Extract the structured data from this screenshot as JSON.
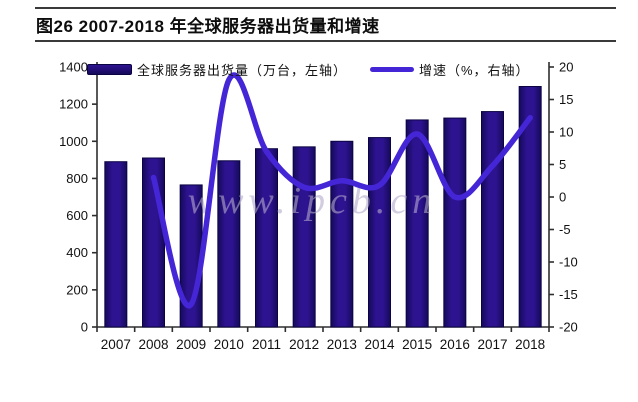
{
  "header": {
    "title": "图26  2007-2018 年全球服务器出货量和增速"
  },
  "legend": [
    {
      "label": "全球服务器出货量（万台，左轴）",
      "type": "bar"
    },
    {
      "label": "增速（%，右轴）",
      "type": "line"
    }
  ],
  "watermark": {
    "text": "www.ipcb.cn"
  },
  "chart_data": {
    "type": "bar+line combo",
    "title": "2007-2018 年全球服务器出货量和增速",
    "categories": [
      "2007",
      "2008",
      "2009",
      "2010",
      "2011",
      "2012",
      "2013",
      "2014",
      "2015",
      "2016",
      "2017",
      "2018"
    ],
    "series": [
      {
        "name": "全球服务器出货量（万台，左轴）",
        "type": "bar",
        "axis": "left",
        "values": [
          890,
          910,
          765,
          895,
          960,
          970,
          1000,
          1020,
          1115,
          1125,
          1160,
          1295
        ]
      },
      {
        "name": "增速（%，右轴）",
        "type": "line",
        "axis": "right",
        "values": [
          null,
          3.0,
          -16.5,
          18.0,
          7.0,
          1.5,
          2.5,
          1.8,
          9.7,
          0.0,
          4.8,
          12.2
        ]
      }
    ],
    "left_axis": {
      "label": "万台",
      "min": 0,
      "max": 1400,
      "ticks": [
        0,
        200,
        400,
        600,
        800,
        1000,
        1200,
        1400
      ]
    },
    "right_axis": {
      "label": "%",
      "min": -20,
      "max": 20,
      "ticks": [
        -20,
        -15,
        -10,
        -5,
        0,
        5,
        10,
        15,
        20
      ]
    },
    "grid": "off",
    "legend_position": "top",
    "colors": {
      "bar_fill": "#2e1391",
      "bar_fill_dark": "#150a5a",
      "bar_edge": "#0a0442",
      "line": "#4526d6",
      "axis": "#2e2e2e",
      "text": "#111111",
      "watermark": "#b4aacc"
    }
  }
}
